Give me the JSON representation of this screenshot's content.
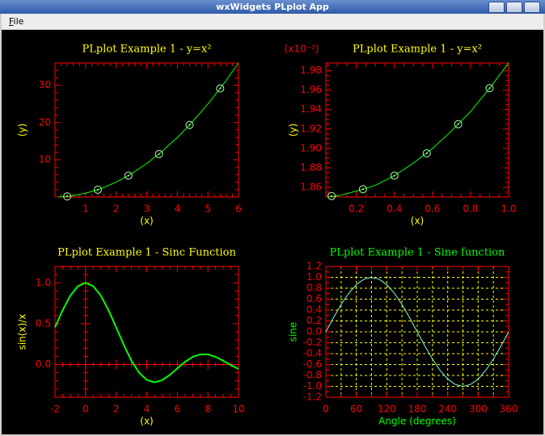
{
  "window": {
    "title": "wxWidgets PLplot App",
    "menu": [
      "File"
    ]
  },
  "chart_data": [
    {
      "type": "line",
      "title": "PLplot Example 1 - y=x²",
      "xlabel": "(x)",
      "ylabel": "(y)",
      "title_color": "#ffff00",
      "label_color": "#ffff00",
      "frame_color": "#ff0000",
      "xlim": [
        0,
        6
      ],
      "ylim": [
        0,
        36
      ],
      "xticks": [
        1,
        2,
        3,
        4,
        5,
        6
      ],
      "yticks": [
        10,
        20,
        30
      ],
      "x_minor": 5,
      "y_minor": 5,
      "series": [
        {
          "style": "line",
          "color": "#00ff00",
          "x": [
            0.1,
            0.5,
            1,
            1.5,
            2,
            2.5,
            3,
            3.5,
            4,
            4.5,
            5,
            5.5,
            6
          ],
          "values": [
            0.01,
            0.25,
            1,
            2.25,
            4,
            6.25,
            9,
            12.25,
            16,
            20.25,
            25,
            30.25,
            36
          ]
        },
        {
          "style": "markers",
          "color": "#b0ffb0",
          "x": [
            0.4,
            1.4,
            2.4,
            3.4,
            4.4,
            5.4
          ],
          "values": [
            0.16,
            1.96,
            5.76,
            11.56,
            19.36,
            29.16
          ]
        }
      ]
    },
    {
      "type": "line",
      "title": "PLplot Example 1 - y=x²",
      "xlabel": "(x)",
      "ylabel": "(y)",
      "ymult": "(x10⁻²)",
      "title_color": "#ffff00",
      "label_color": "#ffff00",
      "frame_color": "#ff0000",
      "xlim": [
        0.04,
        1.0
      ],
      "ylim": [
        1.85,
        1.988
      ],
      "xticks": [
        0.2,
        0.4,
        0.6,
        0.8,
        {
          "value": 1.0,
          "label": "1.0"
        }
      ],
      "yticks": [
        1.86,
        1.88,
        {
          "value": 1.9,
          "label": "1.90"
        },
        1.92,
        1.94,
        1.96,
        1.98
      ],
      "x_minor": 4,
      "y_minor": 4,
      "series": [
        {
          "style": "line",
          "color": "#00ff00",
          "x": [
            0.05,
            0.1,
            0.2,
            0.3,
            0.4,
            0.5,
            0.6,
            0.7,
            0.8,
            0.9,
            1.0
          ],
          "values": [
            1.85,
            1.851,
            1.856,
            1.862,
            1.872,
            1.885,
            1.9,
            1.918,
            1.938,
            1.962,
            1.988
          ]
        },
        {
          "style": "markers",
          "color": "#b0ffb0",
          "x": [
            0.07,
            0.235,
            0.4,
            0.57,
            0.735,
            0.9
          ],
          "values": [
            1.851,
            1.858,
            1.872,
            1.895,
            1.925,
            1.962
          ]
        }
      ]
    },
    {
      "type": "line",
      "title": "PLplot Example 1 - Sinc Function",
      "xlabel": "(x)",
      "ylabel": "sin(x)/x",
      "title_color": "#ffff00",
      "label_color": "#ffff00",
      "frame_color": "#ff0000",
      "zero_axes": true,
      "xlim": [
        -2,
        10
      ],
      "ylim": [
        -0.4,
        1.2
      ],
      "xticks": [
        -2,
        0,
        2,
        4,
        6,
        8,
        10
      ],
      "yticks": [
        {
          "value": 0,
          "label": "0.0"
        },
        0.5,
        {
          "value": 1,
          "label": "1.0"
        }
      ],
      "x_minor": 4,
      "y_minor": 5,
      "series": [
        {
          "style": "line",
          "color": "#00ff00",
          "width": 2,
          "x": [
            -2,
            -1.5,
            -1,
            -0.5,
            0,
            0.5,
            1,
            1.5,
            2,
            2.5,
            3,
            3.5,
            4,
            4.5,
            5,
            5.5,
            6,
            6.5,
            7,
            7.5,
            8,
            8.5,
            9,
            9.5,
            10
          ],
          "values": [
            0.4546,
            0.665,
            0.8415,
            0.9589,
            1,
            0.9589,
            0.8415,
            0.665,
            0.4546,
            0.2394,
            0.047,
            -0.1002,
            -0.1892,
            -0.2172,
            -0.1918,
            -0.1283,
            -0.0466,
            0.0331,
            0.0939,
            0.1251,
            0.1237,
            0.0939,
            0.0458,
            -0.0079,
            -0.0544
          ]
        }
      ]
    },
    {
      "type": "line",
      "title": "PLplot Example 1 - Sine function",
      "xlabel": "Angle (degrees)",
      "ylabel": "sine",
      "title_color": "#00ff00",
      "label_color": "#00ff00",
      "frame_color": "#ff0000",
      "grid": true,
      "grid_color": "#ffff00",
      "xlim": [
        0,
        360
      ],
      "ylim": [
        -1.2,
        1.2
      ],
      "xticks": [
        0,
        60,
        120,
        180,
        240,
        300,
        360
      ],
      "yticks": [
        -1.2,
        {
          "value": -1,
          "label": "-1.0"
        },
        -0.8,
        -0.6,
        -0.4,
        -0.2,
        {
          "value": 0,
          "label": "0.0"
        },
        0.2,
        0.4,
        0.6,
        0.8,
        {
          "value": 1,
          "label": "1.0"
        },
        1.2
      ],
      "x_minor": 2,
      "y_minor": 2,
      "series": [
        {
          "style": "line",
          "color": "#7fffd4",
          "x": [
            0,
            15,
            30,
            45,
            60,
            75,
            90,
            105,
            120,
            135,
            150,
            165,
            180,
            195,
            210,
            225,
            240,
            255,
            270,
            285,
            300,
            315,
            330,
            345,
            360
          ],
          "values": [
            0,
            0.2588,
            0.5,
            0.7071,
            0.866,
            0.9659,
            1,
            0.9659,
            0.866,
            0.7071,
            0.5,
            0.2588,
            0,
            -0.2588,
            -0.5,
            -0.7071,
            -0.866,
            -0.9659,
            -1,
            -0.9659,
            -0.866,
            -0.7071,
            -0.5,
            -0.2588,
            0
          ]
        }
      ]
    }
  ]
}
